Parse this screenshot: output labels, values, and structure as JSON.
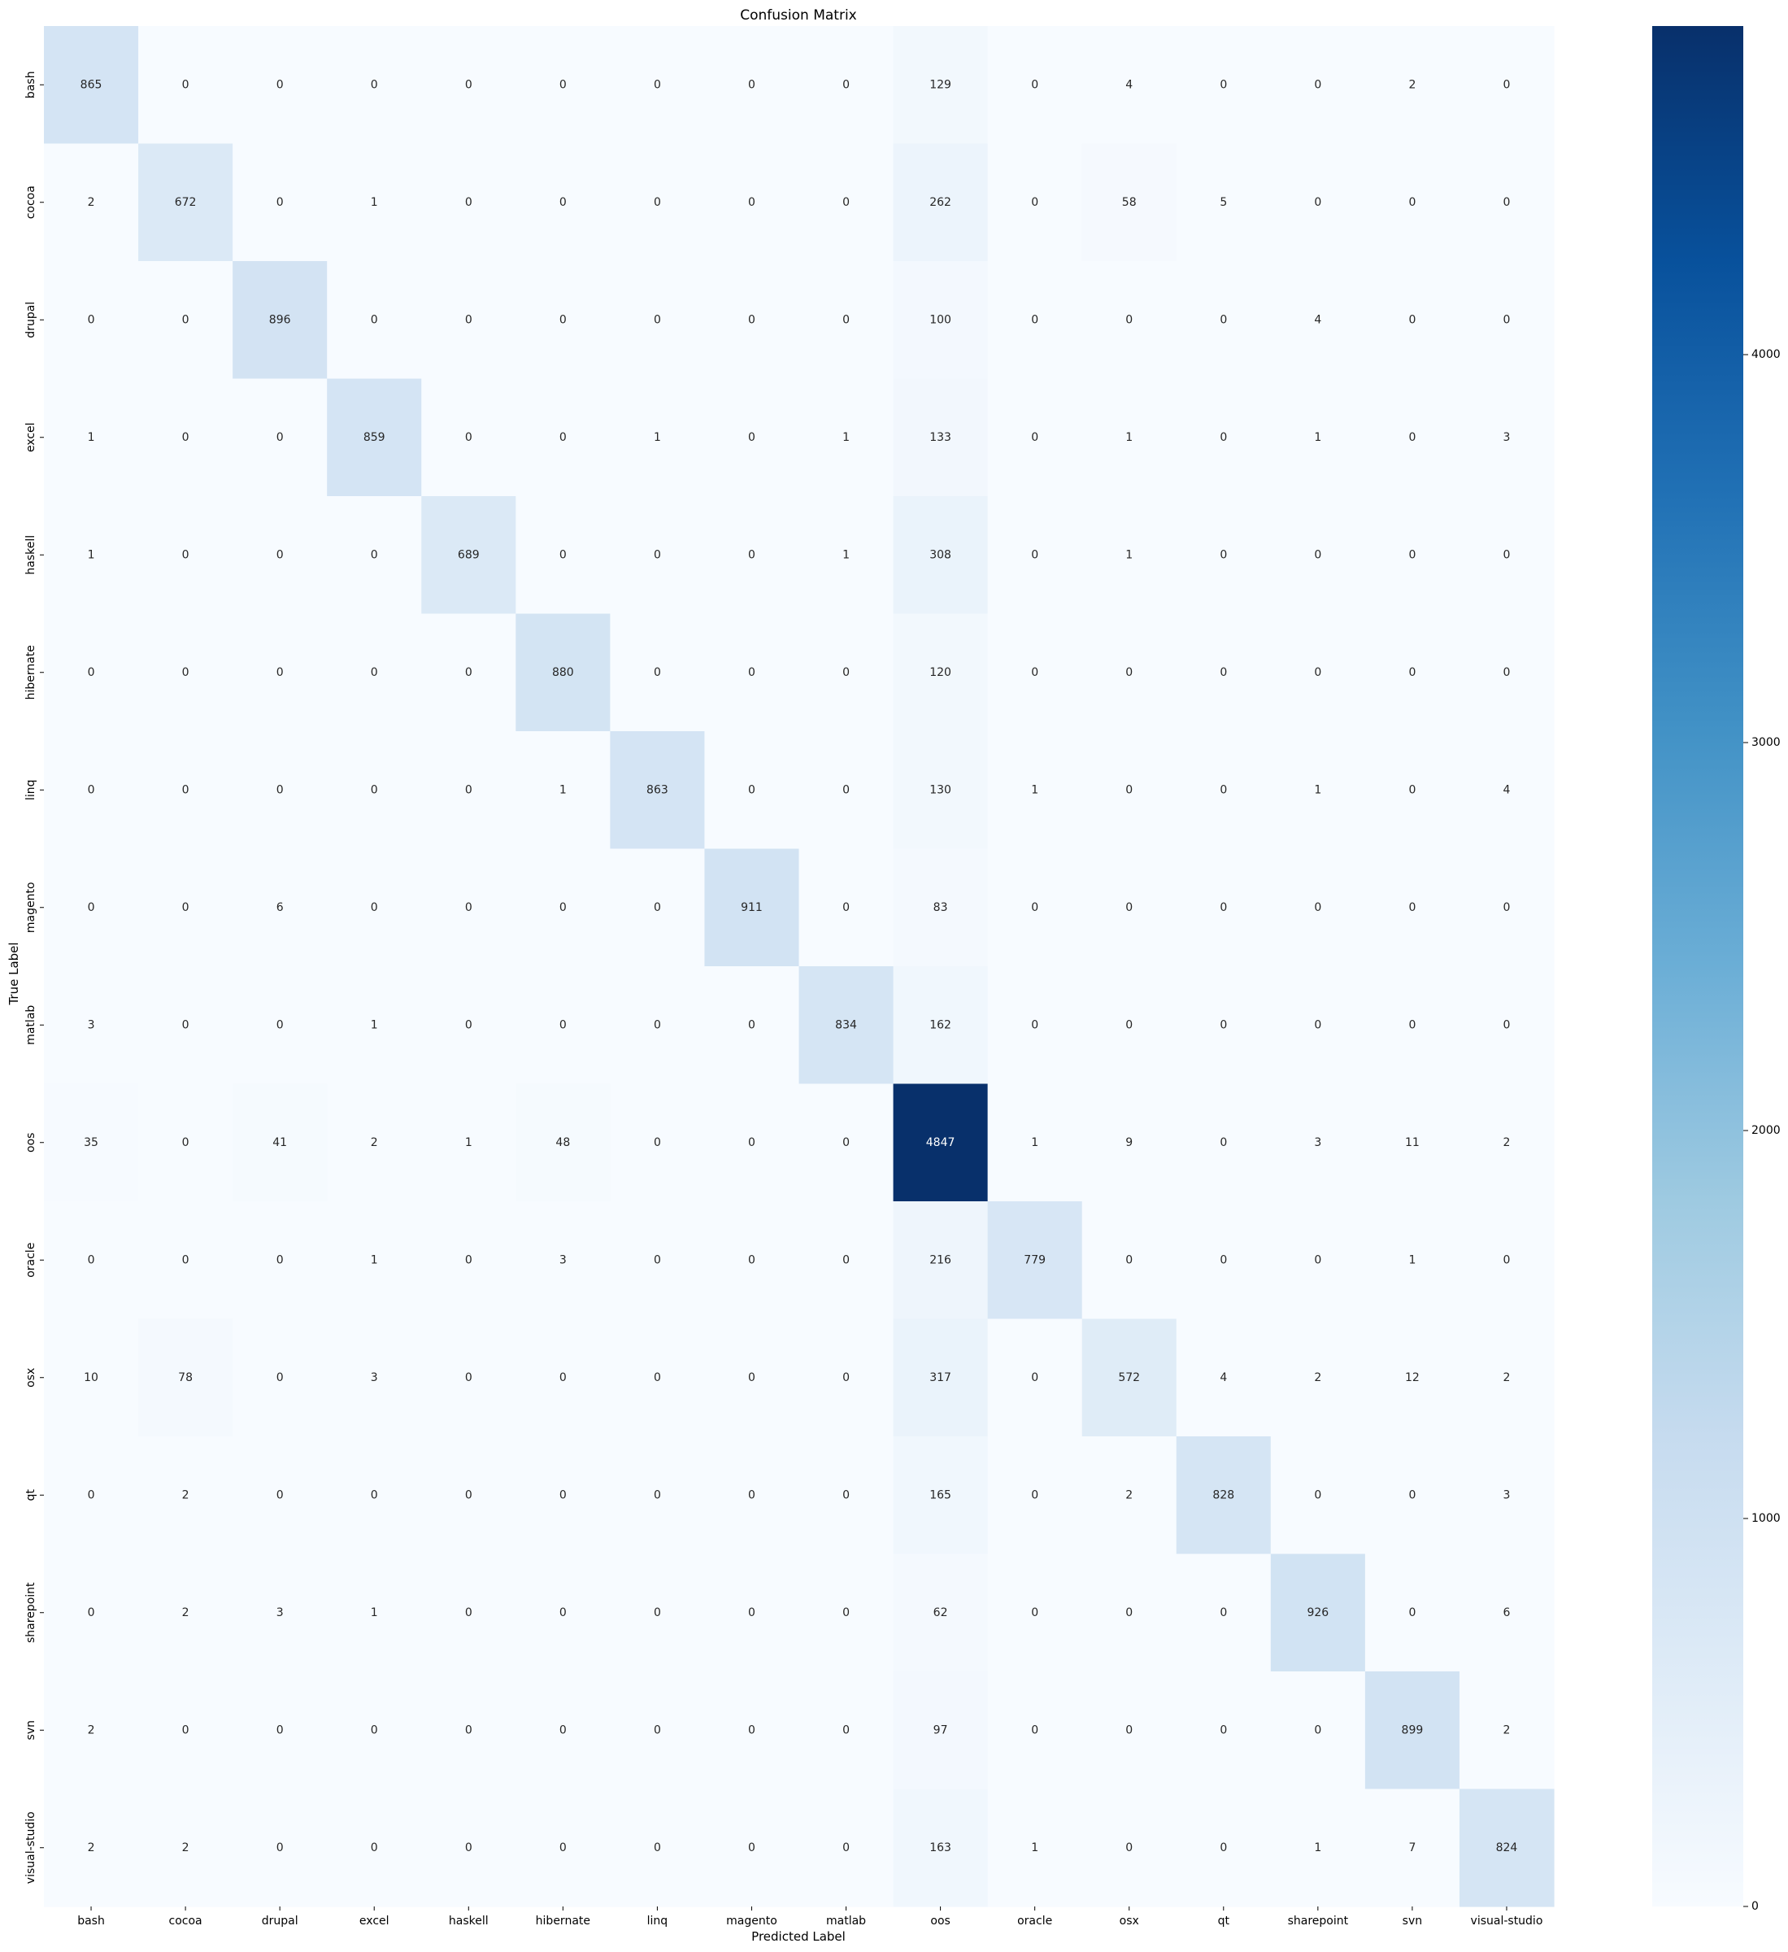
{
  "chart_data": {
    "type": "heatmap",
    "title": "Confusion Matrix",
    "xlabel": "Predicted Label",
    "ylabel": "True Label",
    "colormap": "Blues",
    "colorbar": {
      "min": 0,
      "max": 4847,
      "ticks": [
        0,
        1000,
        2000,
        3000,
        4000
      ]
    },
    "labels": [
      "bash",
      "cocoa",
      "drupal",
      "excel",
      "haskell",
      "hibernate",
      "linq",
      "magento",
      "matlab",
      "oos",
      "oracle",
      "osx",
      "qt",
      "sharepoint",
      "svn",
      "visual-studio"
    ],
    "matrix": [
      [
        865,
        0,
        0,
        0,
        0,
        0,
        0,
        0,
        0,
        129,
        0,
        4,
        0,
        0,
        2,
        0
      ],
      [
        2,
        672,
        0,
        1,
        0,
        0,
        0,
        0,
        0,
        262,
        0,
        58,
        5,
        0,
        0,
        0
      ],
      [
        0,
        0,
        896,
        0,
        0,
        0,
        0,
        0,
        0,
        100,
        0,
        0,
        0,
        4,
        0,
        0
      ],
      [
        1,
        0,
        0,
        859,
        0,
        0,
        1,
        0,
        1,
        133,
        0,
        1,
        0,
        1,
        0,
        3
      ],
      [
        1,
        0,
        0,
        0,
        689,
        0,
        0,
        0,
        1,
        308,
        0,
        1,
        0,
        0,
        0,
        0
      ],
      [
        0,
        0,
        0,
        0,
        0,
        880,
        0,
        0,
        0,
        120,
        0,
        0,
        0,
        0,
        0,
        0
      ],
      [
        0,
        0,
        0,
        0,
        0,
        1,
        863,
        0,
        0,
        130,
        1,
        0,
        0,
        1,
        0,
        4
      ],
      [
        0,
        0,
        6,
        0,
        0,
        0,
        0,
        911,
        0,
        83,
        0,
        0,
        0,
        0,
        0,
        0
      ],
      [
        3,
        0,
        0,
        1,
        0,
        0,
        0,
        0,
        834,
        162,
        0,
        0,
        0,
        0,
        0,
        0
      ],
      [
        35,
        0,
        41,
        2,
        1,
        48,
        0,
        0,
        0,
        4847,
        1,
        9,
        0,
        3,
        11,
        2
      ],
      [
        0,
        0,
        0,
        1,
        0,
        3,
        0,
        0,
        0,
        216,
        779,
        0,
        0,
        0,
        1,
        0
      ],
      [
        10,
        78,
        0,
        3,
        0,
        0,
        0,
        0,
        0,
        317,
        0,
        572,
        4,
        2,
        12,
        2
      ],
      [
        0,
        2,
        0,
        0,
        0,
        0,
        0,
        0,
        0,
        165,
        0,
        2,
        828,
        0,
        0,
        3
      ],
      [
        0,
        2,
        3,
        1,
        0,
        0,
        0,
        0,
        0,
        62,
        0,
        0,
        0,
        926,
        0,
        6
      ],
      [
        2,
        0,
        0,
        0,
        0,
        0,
        0,
        0,
        0,
        97,
        0,
        0,
        0,
        0,
        899,
        2
      ],
      [
        2,
        2,
        0,
        0,
        0,
        0,
        0,
        0,
        0,
        163,
        1,
        0,
        0,
        1,
        7,
        824
      ]
    ]
  }
}
